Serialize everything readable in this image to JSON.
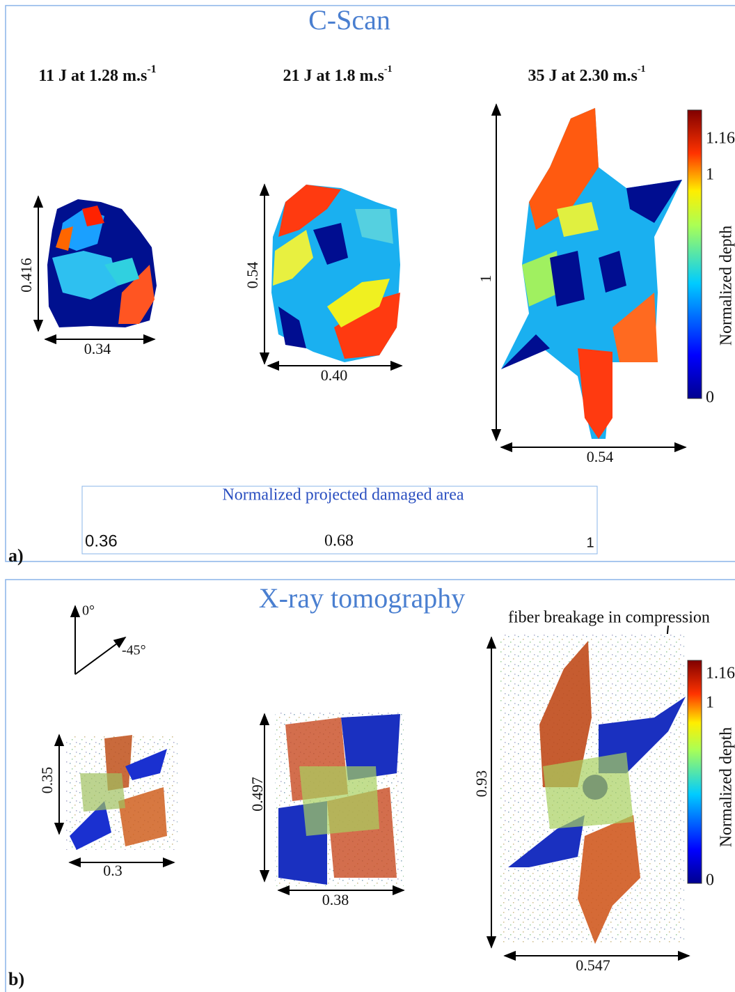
{
  "panel_a": {
    "label": "a)",
    "title": "C-Scan",
    "conditions": [
      {
        "text": "11 J at 1.28 m.s",
        "sup": "-1",
        "height": "0.416",
        "width": "0.34"
      },
      {
        "text": "21 J at 1.8 m.s",
        "sup": "-1",
        "height": "0.54",
        "width": "0.40"
      },
      {
        "text": "35 J at 2.30 m.s",
        "sup": "-1",
        "height": "1",
        "width": "0.54"
      }
    ],
    "colorbar": {
      "ticks": [
        "1.16",
        "1",
        "0"
      ],
      "label": "Normalized depth"
    },
    "area_box": {
      "title": "Normalized projected damaged area",
      "values": [
        "0.36",
        "0.68",
        "1"
      ]
    }
  },
  "panel_b": {
    "label": "b)",
    "title": "X-ray tomography",
    "orientation": [
      "0°",
      "-45°"
    ],
    "annotation": "fiber breakage in compression",
    "samples": [
      {
        "height": "0.35",
        "width": "0.3"
      },
      {
        "height": "0.497",
        "width": "0.38"
      },
      {
        "height": "0.93",
        "width": "0.547"
      }
    ],
    "colorbar": {
      "ticks": [
        "1.16",
        "1",
        "0"
      ],
      "label": "Normalized depth"
    }
  }
}
